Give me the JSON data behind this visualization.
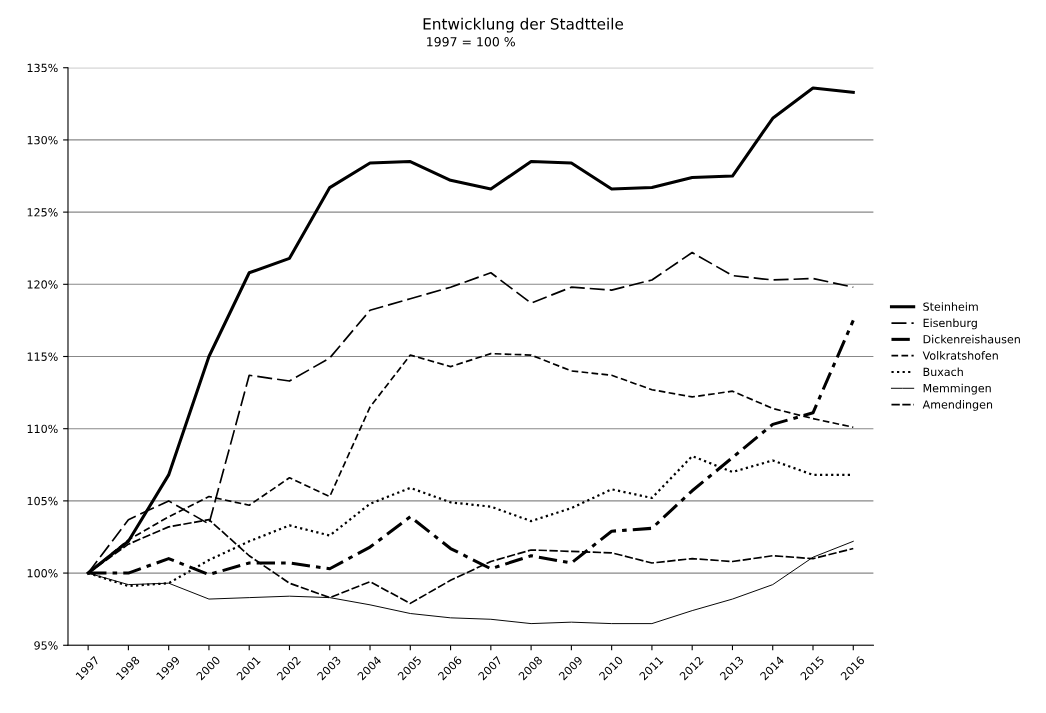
{
  "chart_data": {
    "type": "line",
    "title": "Entwicklung der Stadtteile",
    "subtitle": "1997 = 100 %",
    "categories": [
      "1997",
      "1998",
      "1999",
      "2000",
      "2001",
      "2002",
      "2003",
      "2004",
      "2005",
      "2006",
      "2007",
      "2008",
      "2009",
      "2010",
      "2011",
      "2012",
      "2013",
      "2014",
      "2015",
      "2016"
    ],
    "series": [
      {
        "name": "Steinheim",
        "color": "#000000",
        "line_style": "solid",
        "values": [
          100,
          102.2,
          106.8,
          115.0,
          120.8,
          121.8,
          126.7,
          128.4,
          128.5,
          127.2,
          126.6,
          128.5,
          128.4,
          126.6,
          126.7,
          127.4,
          127.5,
          131.5,
          133.6,
          133.3
        ]
      },
      {
        "name": "Eisenburg",
        "color": "#000000",
        "line_style": "longdash",
        "values": [
          100,
          103.7,
          105.0,
          103.4,
          113.7,
          113.3,
          114.9,
          118.2,
          119.0,
          119.8,
          120.8,
          118.7,
          119.8,
          119.6,
          120.3,
          122.2,
          120.6,
          120.3,
          120.4,
          119.8
        ]
      },
      {
        "name": "Dickenreishausen",
        "color": "#000000",
        "line_style": "dashdot",
        "values": [
          100,
          100.0,
          101.0,
          99.9,
          100.7,
          100.7,
          100.3,
          101.8,
          103.9,
          101.7,
          100.3,
          101.2,
          100.7,
          102.9,
          103.1,
          105.7,
          108.0,
          110.3,
          111.1,
          117.5
        ]
      },
      {
        "name": "Volkratshofen",
        "color": "#000000",
        "line_style": "dashed",
        "values": [
          100,
          102.3,
          103.9,
          105.3,
          104.7,
          106.6,
          105.3,
          111.5,
          115.1,
          114.3,
          115.2,
          115.1,
          114.0,
          113.7,
          112.7,
          112.2,
          112.6,
          111.4,
          110.7,
          110.1
        ]
      },
      {
        "name": "Buxach",
        "color": "#000000",
        "line_style": "dotted",
        "values": [
          100,
          99.1,
          99.3,
          100.9,
          102.2,
          103.3,
          102.6,
          104.8,
          105.9,
          104.9,
          104.6,
          103.6,
          104.5,
          105.8,
          105.2,
          108.1,
          107.0,
          107.8,
          106.8,
          106.8
        ]
      },
      {
        "name": "Memmingen",
        "color": "#000000",
        "line_style": "solid",
        "values": [
          100,
          99.2,
          99.3,
          98.2,
          98.3,
          98.4,
          98.3,
          97.8,
          97.2,
          96.9,
          96.8,
          96.5,
          96.6,
          96.5,
          96.5,
          97.4,
          98.2,
          99.2,
          101.1,
          102.2
        ]
      },
      {
        "name": "Amendingen",
        "color": "#000000",
        "line_style": "mediumdash",
        "values": [
          100,
          102.0,
          103.2,
          103.7,
          101.2,
          99.3,
          98.3,
          99.4,
          97.9,
          99.5,
          100.8,
          101.6,
          101.5,
          101.4,
          100.7,
          101.0,
          100.8,
          101.2,
          101.0,
          101.7
        ]
      }
    ],
    "ylim": [
      95,
      135
    ],
    "yticks": [
      {
        "value": 95,
        "label": "95%"
      },
      {
        "value": 100,
        "label": "100%"
      },
      {
        "value": 105,
        "label": "105%"
      },
      {
        "value": 110,
        "label": "110%"
      },
      {
        "value": 115,
        "label": "115%"
      },
      {
        "value": 120,
        "label": "120%"
      },
      {
        "value": 125,
        "label": "125%"
      },
      {
        "value": 130,
        "label": "130%"
      },
      {
        "value": 135,
        "label": "135%"
      }
    ],
    "grid": "y",
    "legend": "right",
    "marker": "none"
  }
}
